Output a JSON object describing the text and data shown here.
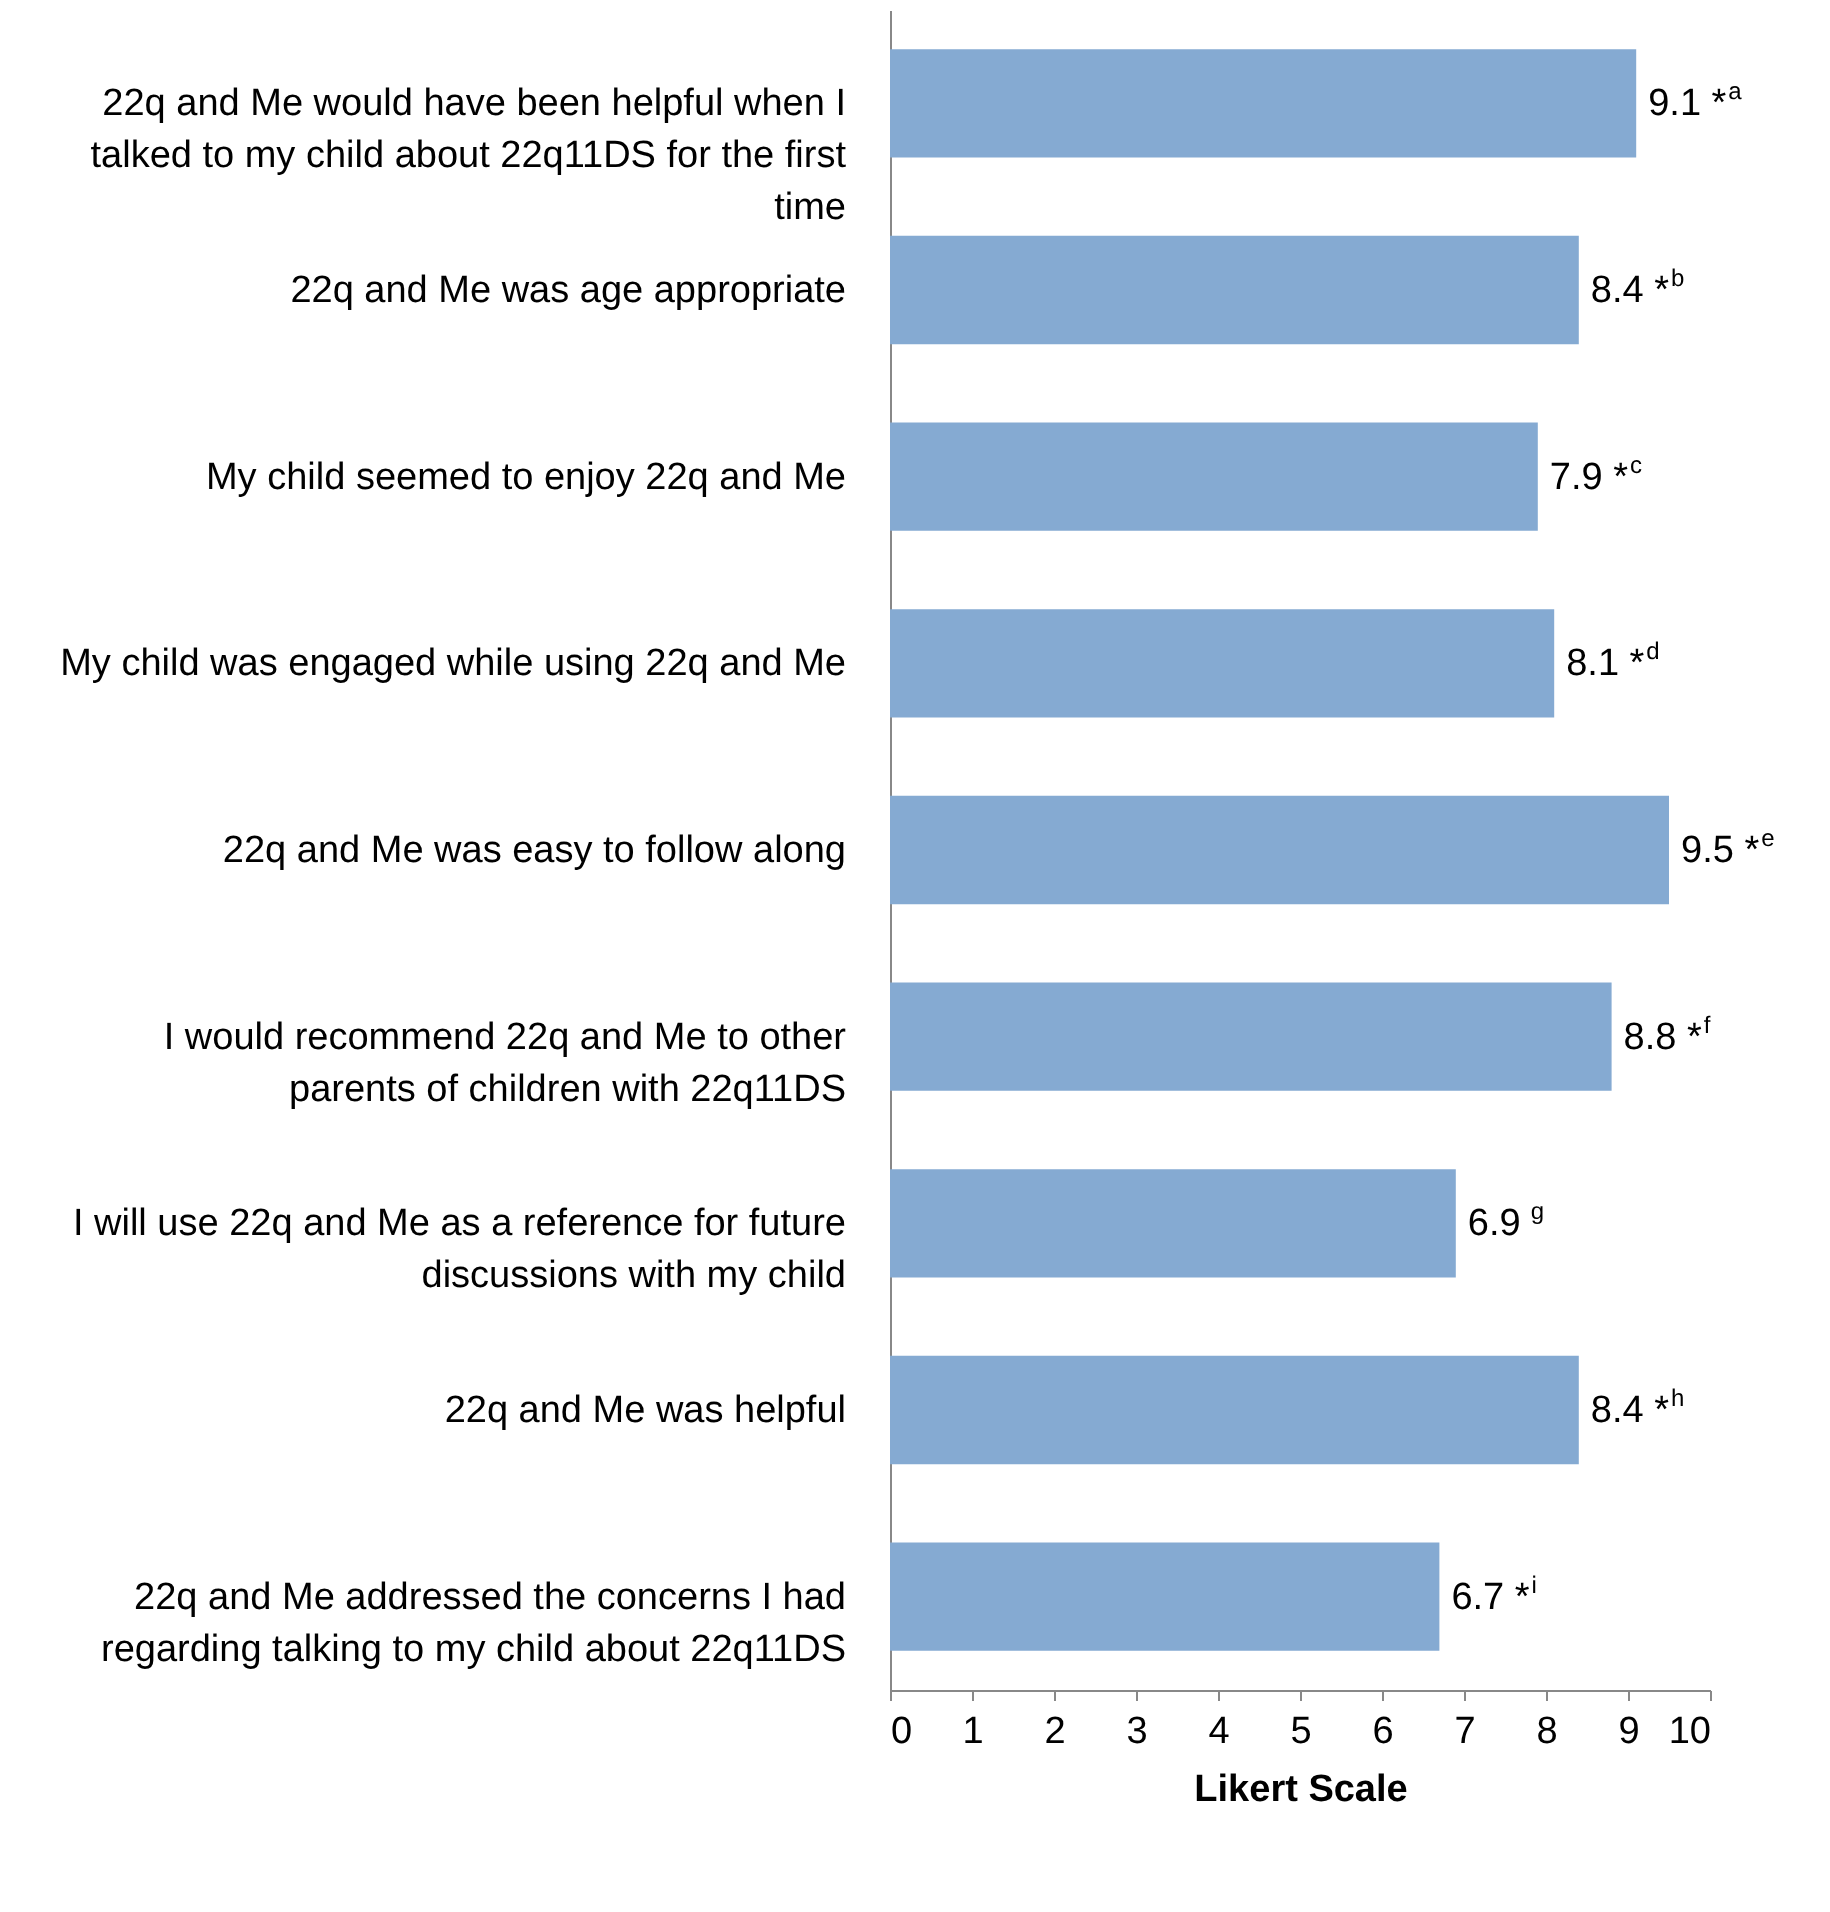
{
  "chart_data": {
    "type": "bar",
    "orientation": "horizontal",
    "xlabel": "Likert Scale",
    "categories": [
      "22q and Me would have been helpful when I talked to my child about 22q11DS for the first time",
      "22q and Me was age appropriate",
      "My child seemed to enjoy 22q and Me",
      "My child was engaged while using 22q and Me",
      "22q and Me was easy to follow along",
      "I would recommend 22q and Me to other parents of children with 22q11DS",
      "I will use 22q and Me as a reference for future discussions with my child",
      "22q and Me was helpful",
      "22q and Me addressed the concerns I had regarding talking to my child about 22q11DS"
    ],
    "values": [
      9.1,
      8.4,
      7.9,
      8.1,
      9.5,
      8.8,
      6.9,
      8.4,
      6.7
    ],
    "value_labels": [
      "9.1 *$^{a}$",
      "8.4 *$^{b}$",
      "7.9 *$^{c}$",
      "8.1 *$^{d}$",
      "9.5 *$^{e}$",
      "8.8 *$^{f}$",
      "6.9 $^{g}$",
      "8.4 *$^{h}$",
      "6.7 *$^{i}$"
    ],
    "color": "#85aad2",
    "xlim": [
      0,
      10
    ],
    "xticks": [
      0,
      1,
      2,
      3,
      4,
      5,
      6,
      7,
      8,
      9,
      10
    ],
    "grid": false
  }
}
